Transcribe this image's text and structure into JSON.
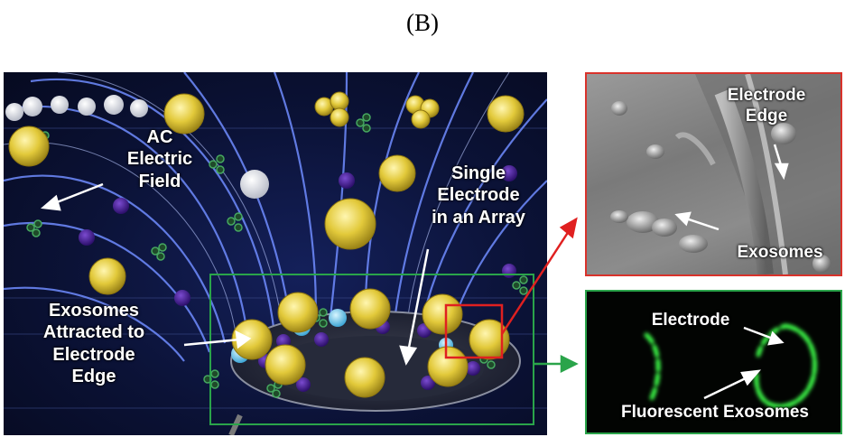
{
  "caption": "(B)",
  "main_panel": {
    "labels": {
      "ac_field": "AC\nElectric\nField",
      "single_electrode": "Single\nElectrode\nin an Array",
      "exosomes_attracted": "Exosomes\nAttracted to\nElectrode\nEdge"
    }
  },
  "sem_panel": {
    "labels": {
      "electrode_edge": "Electrode\nEdge",
      "exosomes": "Exosomes"
    },
    "border_color": "#d9322b"
  },
  "fluor_panel": {
    "labels": {
      "electrode": "Electrode",
      "fluorescent_exosomes": "Fluorescent Exosomes"
    },
    "border_color": "#2aa44a"
  }
}
